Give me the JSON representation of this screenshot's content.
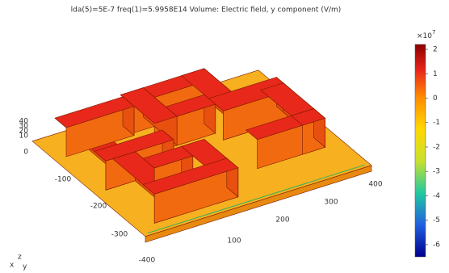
{
  "title": "lda(5)=5E-7 freq(1)=5.9958E14   Volume: Electric field, y component (V/m)",
  "colorbar": {
    "exponent_label": "×10",
    "exponent": "7",
    "clim": [
      -6.5,
      2.2
    ],
    "ticks": [
      2,
      1,
      0,
      -1,
      -2,
      -3,
      -4,
      -5,
      -6
    ]
  },
  "axes": {
    "z_ticks": [
      "40",
      "30",
      "20",
      "10",
      "0"
    ],
    "x_ticks": [
      "-100",
      "-200",
      "-300",
      "-400"
    ],
    "y_ticks": [
      "100",
      "200",
      "300",
      "400"
    ],
    "x_label": "x",
    "y_label": "y",
    "z_label": "z"
  }
}
